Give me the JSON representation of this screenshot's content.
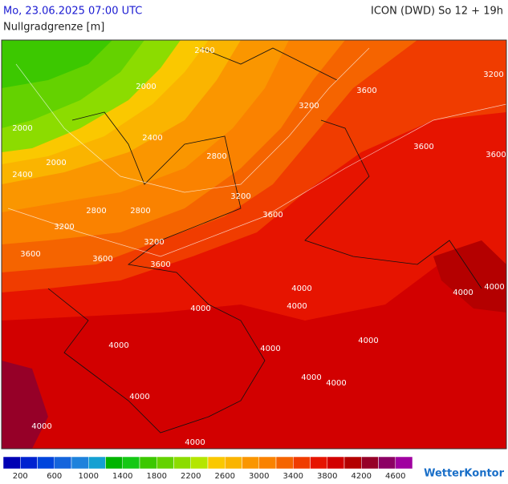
{
  "header": {
    "datetime": "Mo, 23.06.2025 07:00 UTC",
    "model": "ICON (DWD) So 12 + 19h",
    "parameter": "Nullgradgrenze [m]"
  },
  "contour_labels": [
    "2000",
    "2000",
    "2000",
    "2400",
    "2400",
    "2400",
    "2800",
    "2800",
    "2800",
    "3200",
    "3200",
    "3200",
    "3200",
    "3200",
    "3600",
    "3600",
    "3600",
    "3600",
    "3600",
    "3600",
    "3600",
    "4000",
    "4000",
    "4000",
    "4000",
    "4000",
    "4000",
    "4000",
    "4000",
    "4000",
    "4000",
    "4000",
    "4000",
    "4000"
  ],
  "legend": {
    "colors": [
      "#0000b4",
      "#0022d0",
      "#0044dc",
      "#1464dc",
      "#1e82dc",
      "#14a0d2",
      "#00b400",
      "#14c814",
      "#3cc800",
      "#64d200",
      "#8cdc00",
      "#b4e600",
      "#fac800",
      "#fab400",
      "#fa9600",
      "#fa8200",
      "#f56400",
      "#f03c00",
      "#e61400",
      "#d20000",
      "#b40000",
      "#960028",
      "#8c0064",
      "#a000a0"
    ],
    "labels": [
      "200",
      "600",
      "1000",
      "1400",
      "1800",
      "2200",
      "2600",
      "3000",
      "3400",
      "3800",
      "4200",
      "4600"
    ]
  },
  "logo": "WetterKontor"
}
